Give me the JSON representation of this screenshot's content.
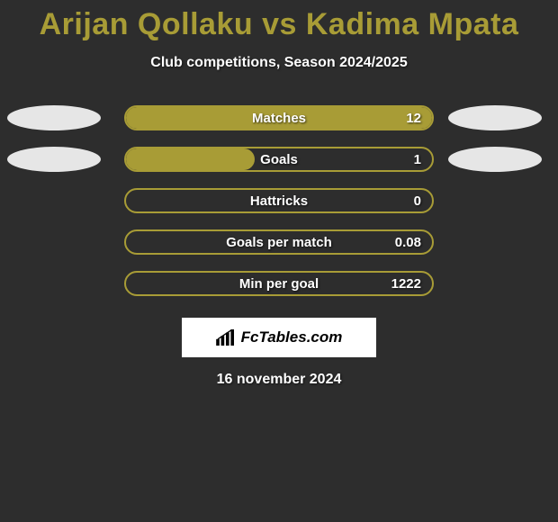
{
  "title": {
    "player1": "Arijan Qollaku",
    "vs": "vs",
    "player2": "Kadima Mpata",
    "color": "#a89c36"
  },
  "subtitle": "Club competitions, Season 2024/2025",
  "bar": {
    "track_border_color": "#a89c36",
    "fill_color": "#a89c36",
    "track_bg": "#2d2d2d"
  },
  "ellipse": {
    "left_color": "#e6e6e6",
    "right_color": "#e6e6e6"
  },
  "stats": [
    {
      "label": "Matches",
      "value": "12",
      "fill_pct": 100,
      "show_left_ellipse": true,
      "show_right_ellipse": true
    },
    {
      "label": "Goals",
      "value": "1",
      "fill_pct": 42,
      "show_left_ellipse": true,
      "show_right_ellipse": true
    },
    {
      "label": "Hattricks",
      "value": "0",
      "fill_pct": 0,
      "show_left_ellipse": false,
      "show_right_ellipse": false
    },
    {
      "label": "Goals per match",
      "value": "0.08",
      "fill_pct": 0,
      "show_left_ellipse": false,
      "show_right_ellipse": false
    },
    {
      "label": "Min per goal",
      "value": "1222",
      "fill_pct": 0,
      "show_left_ellipse": false,
      "show_right_ellipse": false
    }
  ],
  "logo": {
    "text": "FcTables.com"
  },
  "date": "16 november 2024",
  "colors": {
    "background": "#2d2d2d",
    "text": "#ffffff"
  }
}
